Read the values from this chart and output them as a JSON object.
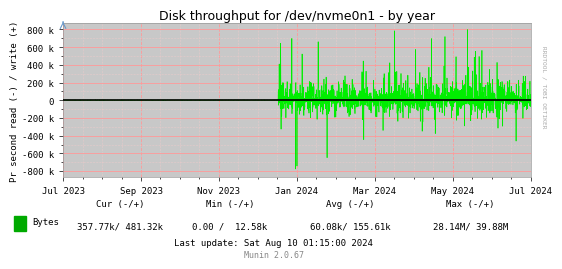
{
  "title": "Disk throughput for /dev/nvme0n1 - by year",
  "ylabel": "Pr second read (-) / write (+)",
  "background_color": "#FFFFFF",
  "plot_background": "#C8C8C8",
  "grid_major_color": "#FF9999",
  "grid_minor_color": "#FFCCCC",
  "line_color": "#00EE00",
  "ylim": [
    -870000,
    870000
  ],
  "yticks": [
    -800000,
    -600000,
    -400000,
    -200000,
    0,
    200000,
    400000,
    600000,
    800000
  ],
  "ytick_labels": [
    "-800 k",
    "-600 k",
    "-400 k",
    "-200 k",
    "0",
    "200 k",
    "400 k",
    "600 k",
    "800 k"
  ],
  "xticklabels": [
    "Jul 2023",
    "Sep 2023",
    "Nov 2023",
    "Jan 2024",
    "Mar 2024",
    "May 2024",
    "Jul 2024"
  ],
  "legend_label": "Bytes",
  "legend_color": "#00AA00",
  "cur_minus": "357.77k",
  "cur_plus": "481.32k",
  "min_minus": "0.00",
  "min_plus": "12.58k",
  "avg_minus": "60.08k",
  "avg_plus": "155.61k",
  "max_minus": "28.14M",
  "max_plus": "39.88M",
  "last_update": "Last update: Sat Aug 10 01:15:00 2024",
  "munin_version": "Munin 2.0.67",
  "rrdtool_label": "RRDTOOL / TOBI OETIKER",
  "zero_line_color": "#000000",
  "spine_color": "#999999",
  "fig_width": 5.47,
  "fig_height": 2.75,
  "dpi": 100
}
